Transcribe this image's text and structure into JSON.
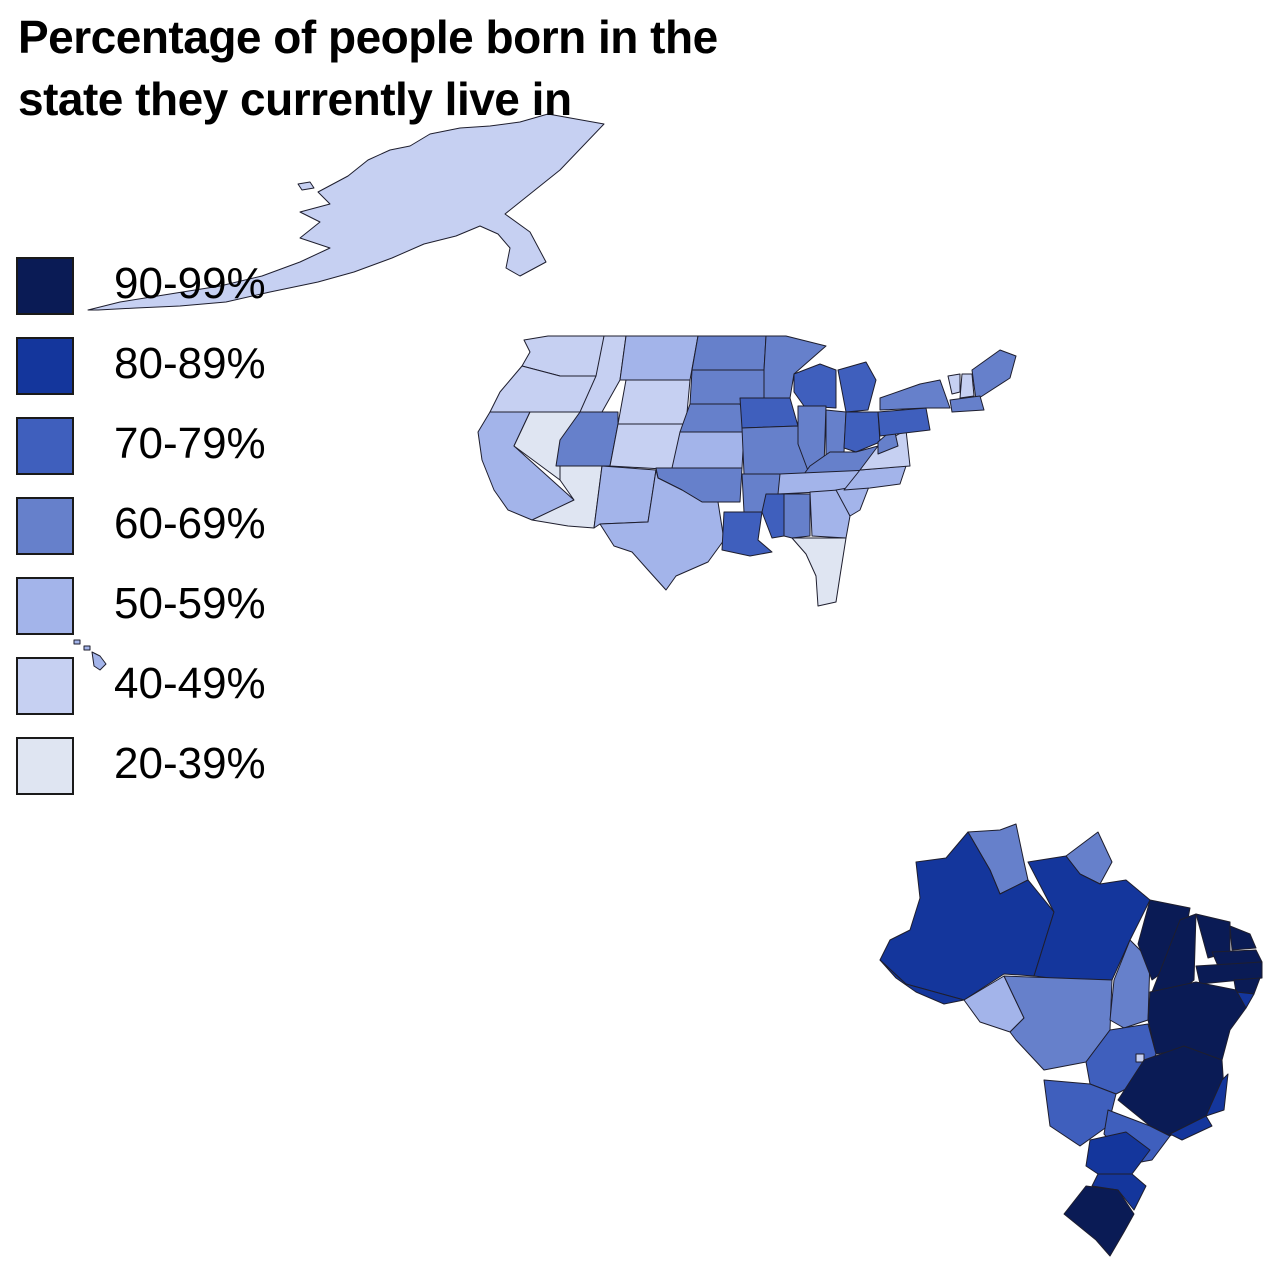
{
  "title": "Percentage of people born in the state they currently live in",
  "legend": {
    "items": [
      {
        "label": "90-99%",
        "color": "#0a1b55"
      },
      {
        "label": "80-89%",
        "color": "#14369c"
      },
      {
        "label": "70-79%",
        "color": "#3f5fbd"
      },
      {
        "label": "60-69%",
        "color": "#6680cb"
      },
      {
        "label": "50-59%",
        "color": "#a3b4ea"
      },
      {
        "label": "40-49%",
        "color": "#c6d0f2"
      },
      {
        "label": "20-39%",
        "color": "#dfe5f2"
      }
    ]
  },
  "regions": {
    "alaska": "40-49%",
    "hawaii": "50-59%",
    "usa": [
      {
        "name": "Washington",
        "bin": "40-49%"
      },
      {
        "name": "Oregon",
        "bin": "40-49%"
      },
      {
        "name": "California",
        "bin": "50-59%"
      },
      {
        "name": "Nevada",
        "bin": "20-39%"
      },
      {
        "name": "Idaho",
        "bin": "40-49%"
      },
      {
        "name": "Montana",
        "bin": "50-59%"
      },
      {
        "name": "Wyoming",
        "bin": "40-49%"
      },
      {
        "name": "Utah",
        "bin": "60-69%"
      },
      {
        "name": "Arizona",
        "bin": "20-39%"
      },
      {
        "name": "Colorado",
        "bin": "40-49%"
      },
      {
        "name": "New Mexico",
        "bin": "50-59%"
      },
      {
        "name": "North Dakota",
        "bin": "60-69%"
      },
      {
        "name": "South Dakota",
        "bin": "60-69%"
      },
      {
        "name": "Nebraska",
        "bin": "60-69%"
      },
      {
        "name": "Kansas",
        "bin": "50-59%"
      },
      {
        "name": "Oklahoma",
        "bin": "60-69%"
      },
      {
        "name": "Texas",
        "bin": "50-59%"
      },
      {
        "name": "Minnesota",
        "bin": "60-69%"
      },
      {
        "name": "Iowa",
        "bin": "70-79%"
      },
      {
        "name": "Missouri",
        "bin": "60-69%"
      },
      {
        "name": "Arkansas",
        "bin": "60-69%"
      },
      {
        "name": "Louisiana",
        "bin": "70-79%"
      },
      {
        "name": "Wisconsin",
        "bin": "70-79%"
      },
      {
        "name": "Illinois",
        "bin": "60-69%"
      },
      {
        "name": "Michigan",
        "bin": "70-79%"
      },
      {
        "name": "Indiana",
        "bin": "60-69%"
      },
      {
        "name": "Ohio",
        "bin": "70-79%"
      },
      {
        "name": "Kentucky",
        "bin": "60-69%"
      },
      {
        "name": "Tennessee",
        "bin": "50-59%"
      },
      {
        "name": "Mississippi",
        "bin": "70-79%"
      },
      {
        "name": "Alabama",
        "bin": "60-69%"
      },
      {
        "name": "Georgia",
        "bin": "50-59%"
      },
      {
        "name": "Florida",
        "bin": "20-39%"
      },
      {
        "name": "South Carolina",
        "bin": "50-59%"
      },
      {
        "name": "North Carolina",
        "bin": "50-59%"
      },
      {
        "name": "Virginia",
        "bin": "40-49%"
      },
      {
        "name": "West Virginia",
        "bin": "60-69%"
      },
      {
        "name": "Pennsylvania",
        "bin": "70-79%"
      },
      {
        "name": "New York",
        "bin": "60-69%"
      },
      {
        "name": "Vermont",
        "bin": "40-49%"
      },
      {
        "name": "New Hampshire",
        "bin": "40-49%"
      },
      {
        "name": "Maine",
        "bin": "60-69%"
      },
      {
        "name": "Massachusetts",
        "bin": "60-69%"
      }
    ],
    "brazil": [
      {
        "name": "Roraima",
        "bin": "60-69%"
      },
      {
        "name": "Amapá",
        "bin": "60-69%"
      },
      {
        "name": "Amazonas",
        "bin": "80-89%"
      },
      {
        "name": "Pará",
        "bin": "80-89%"
      },
      {
        "name": "Acre",
        "bin": "80-89%"
      },
      {
        "name": "Rondônia",
        "bin": "50-59%"
      },
      {
        "name": "Mato Grosso",
        "bin": "60-69%"
      },
      {
        "name": "Tocantins",
        "bin": "60-69%"
      },
      {
        "name": "Maranhão",
        "bin": "90-99%"
      },
      {
        "name": "Piauí",
        "bin": "90-99%"
      },
      {
        "name": "Ceará",
        "bin": "90-99%"
      },
      {
        "name": "Rio Grande do Norte",
        "bin": "90-99%"
      },
      {
        "name": "Paraíba",
        "bin": "90-99%"
      },
      {
        "name": "Pernambuco",
        "bin": "90-99%"
      },
      {
        "name": "Alagoas",
        "bin": "90-99%"
      },
      {
        "name": "Sergipe",
        "bin": "80-89%"
      },
      {
        "name": "Bahia",
        "bin": "90-99%"
      },
      {
        "name": "Goiás",
        "bin": "70-79%"
      },
      {
        "name": "Distrito Federal",
        "bin": "40-49%"
      },
      {
        "name": "Minas Gerais",
        "bin": "90-99%"
      },
      {
        "name": "Espírito Santo",
        "bin": "80-89%"
      },
      {
        "name": "Rio de Janeiro",
        "bin": "80-89%"
      },
      {
        "name": "Mato Grosso do Sul",
        "bin": "70-79%"
      },
      {
        "name": "São Paulo",
        "bin": "70-79%"
      },
      {
        "name": "Paraná",
        "bin": "80-89%"
      },
      {
        "name": "Santa Catarina",
        "bin": "80-89%"
      },
      {
        "name": "Rio Grande do Sul",
        "bin": "90-99%"
      }
    ]
  }
}
